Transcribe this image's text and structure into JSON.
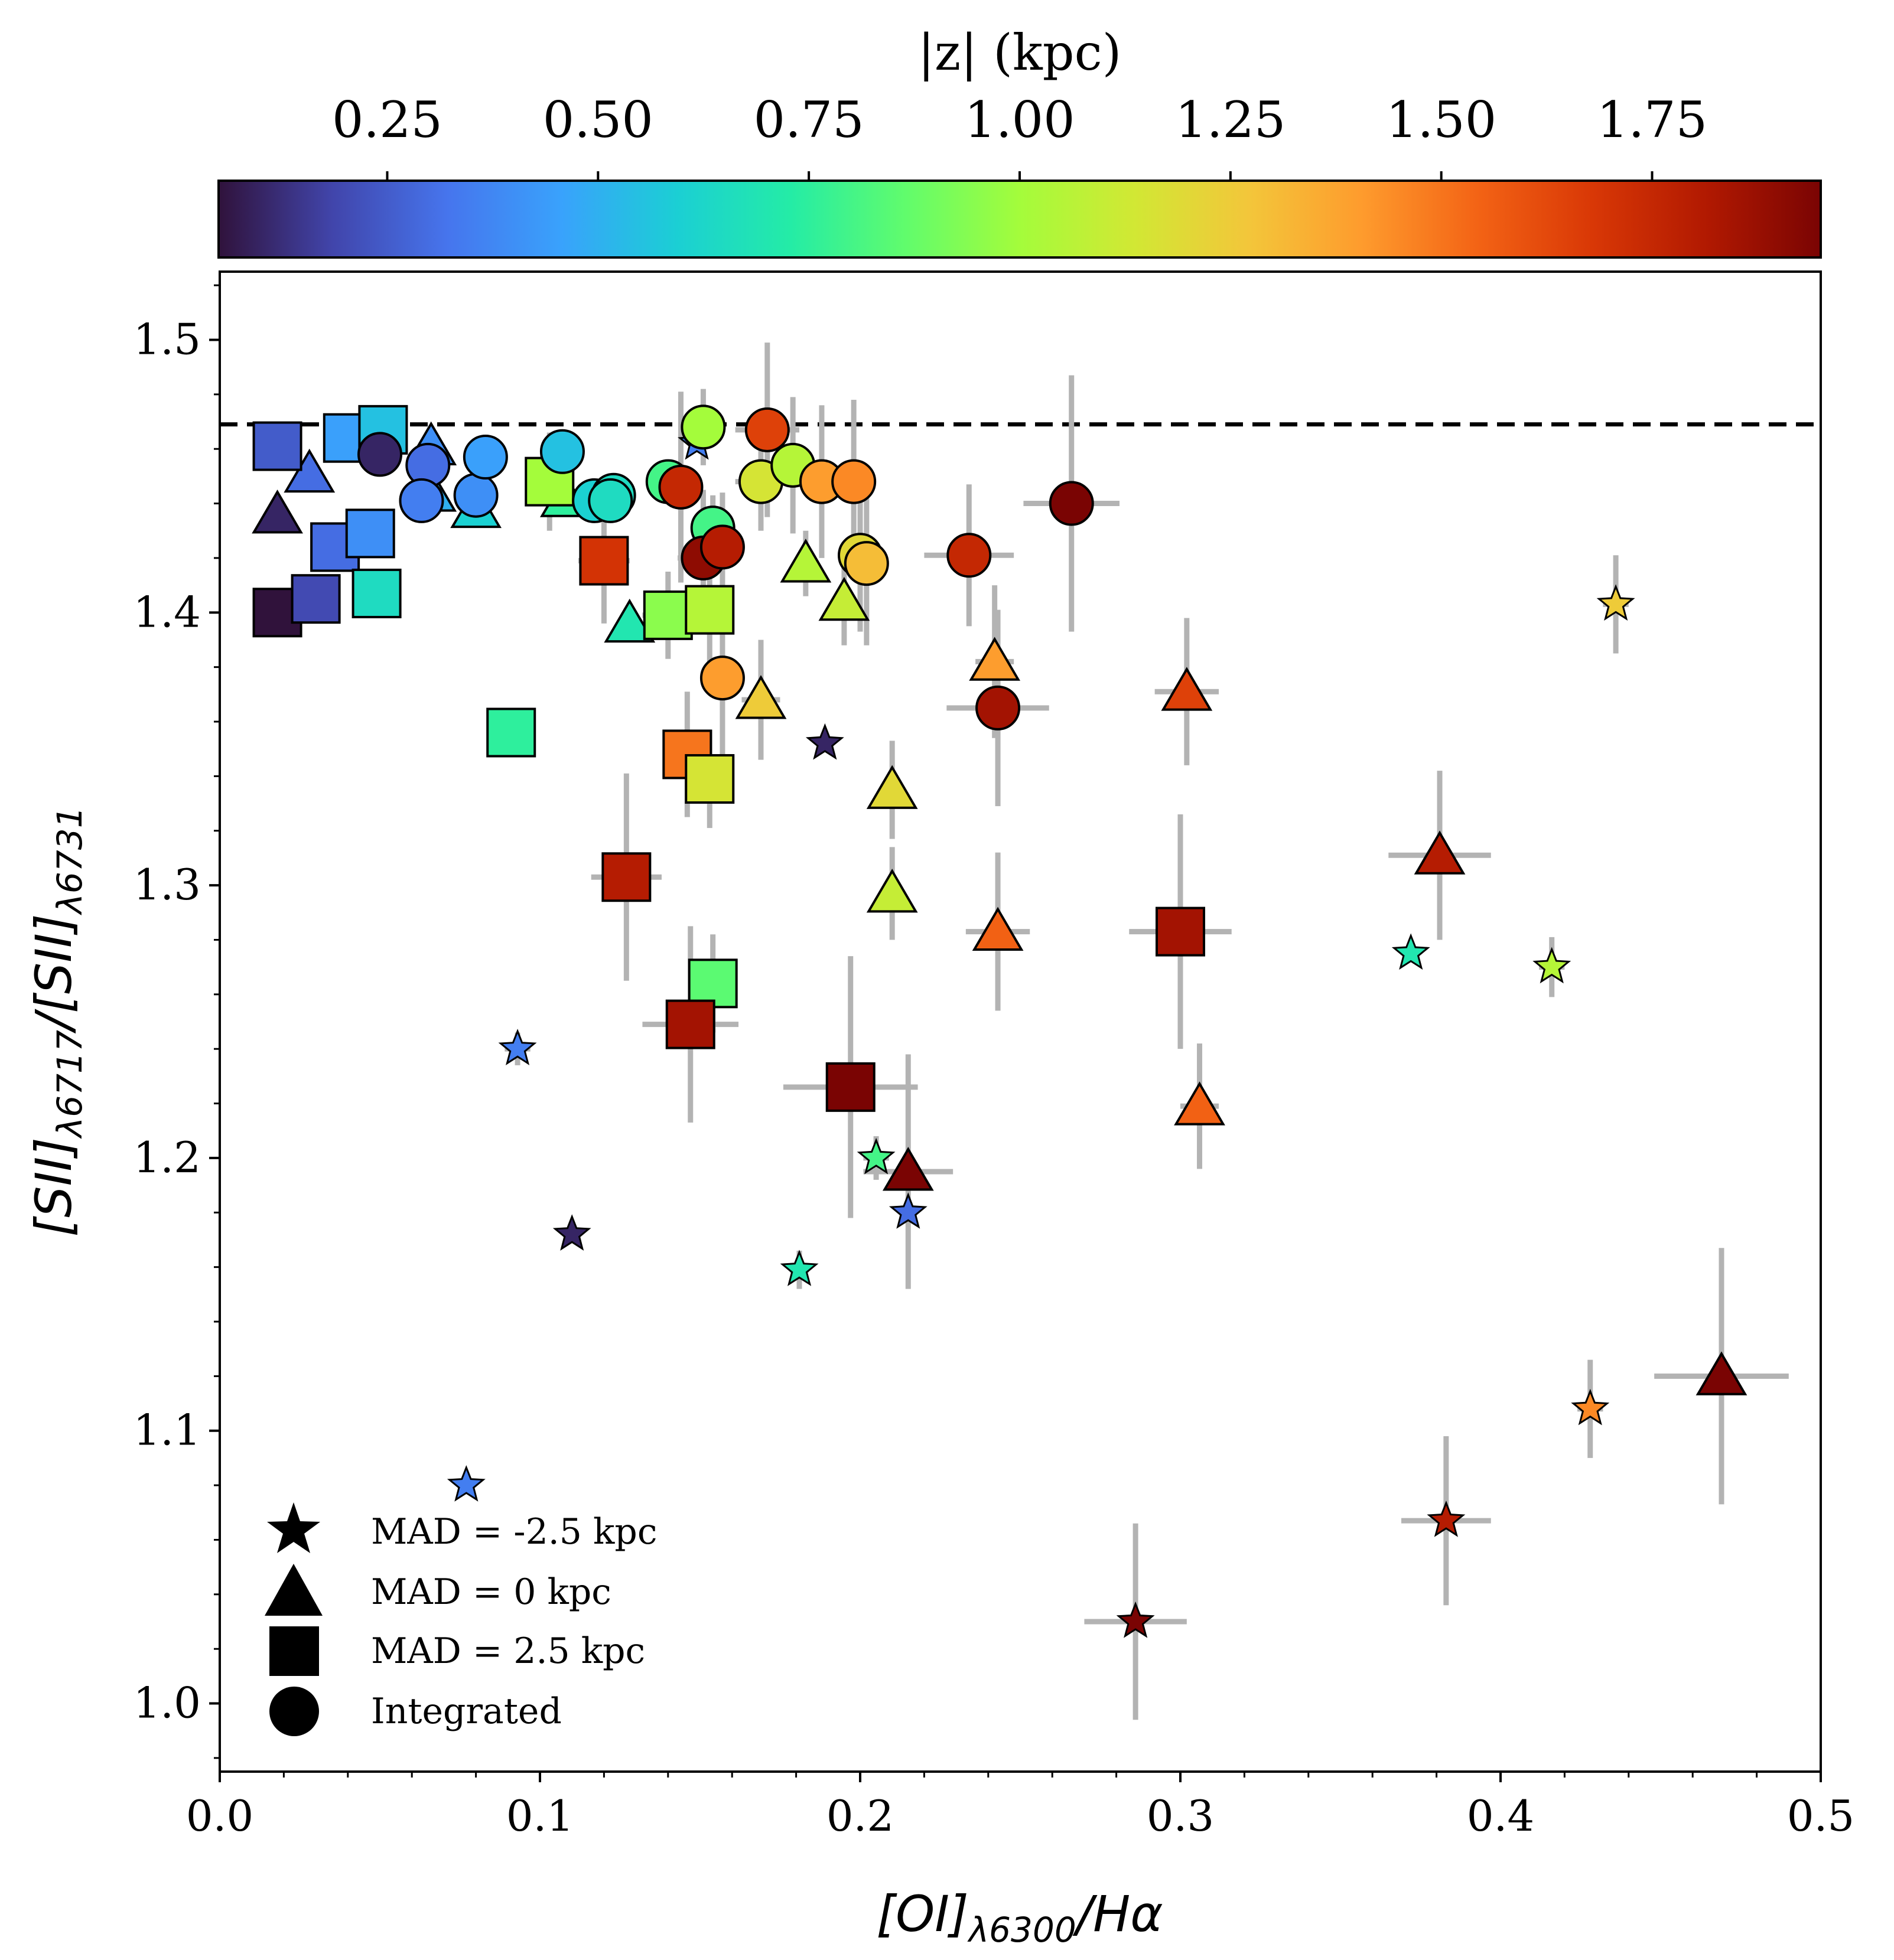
{
  "chart_data": {
    "type": "scatter",
    "title": "",
    "xlabel_parts": {
      "main": "[OI]",
      "sub": "λ6300",
      "tail": "/Hα"
    },
    "ylabel_parts": {
      "a": "[SII]",
      "a_sub": "λ6717",
      "mid": "/[SII]",
      "b_sub": "λ6731"
    },
    "xlim": [
      0.0,
      0.5
    ],
    "ylim": [
      0.975,
      1.525
    ],
    "x_ticks": [
      "0.0",
      "0.1",
      "0.2",
      "0.3",
      "0.4",
      "0.5"
    ],
    "y_ticks": [
      "1.0",
      "1.1",
      "1.2",
      "1.3",
      "1.4",
      "1.5"
    ],
    "reference_line": {
      "y": 1.469,
      "style": "dashed"
    },
    "colorbar": {
      "label": "|z| (kpc)",
      "range": [
        0.05,
        1.95
      ],
      "ticks": [
        "0.25",
        "0.50",
        "0.75",
        "1.00",
        "1.25",
        "1.50",
        "1.75"
      ],
      "colormap": "turbo"
    },
    "legend": {
      "location": "lower-left",
      "entries": [
        {
          "marker": "star",
          "label": "MAD = -2.5 kpc"
        },
        {
          "marker": "triangle",
          "label": "MAD = 0 kpc"
        },
        {
          "marker": "square",
          "label": "MAD = 2.5 kpc"
        },
        {
          "marker": "circle",
          "label": "Integrated"
        }
      ]
    },
    "series": [
      {
        "name": "MAD = -2.5 kpc",
        "marker": "star",
        "points": [
          {
            "x": 0.149,
            "y": 1.462,
            "z": 0.35
          },
          {
            "x": 0.189,
            "y": 1.352,
            "z": 0.1
          },
          {
            "x": 0.093,
            "y": 1.24,
            "z": 0.35,
            "xerr": 0.004,
            "yerr": 0.006
          },
          {
            "x": 0.11,
            "y": 1.172,
            "z": 0.1
          },
          {
            "x": 0.077,
            "y": 1.08,
            "z": 0.35
          },
          {
            "x": 0.205,
            "y": 1.2,
            "z": 0.8,
            "xerr": 0.004,
            "yerr": 0.008
          },
          {
            "x": 0.215,
            "y": 1.18,
            "z": 0.3
          },
          {
            "x": 0.181,
            "y": 1.159,
            "z": 0.7,
            "xerr": 0.003,
            "yerr": 0.007
          },
          {
            "x": 0.286,
            "y": 1.03,
            "z": 1.95,
            "xerr": 0.016,
            "yerr": 0.036
          },
          {
            "x": 0.383,
            "y": 1.067,
            "z": 1.8,
            "xerr": 0.014,
            "yerr": 0.031
          },
          {
            "x": 0.428,
            "y": 1.108,
            "z": 1.45,
            "xerr": 0.004,
            "yerr": 0.018
          },
          {
            "x": 0.372,
            "y": 1.275,
            "z": 0.7
          },
          {
            "x": 0.416,
            "y": 1.27,
            "z": 1.05,
            "xerr": 0.004,
            "yerr": 0.011
          },
          {
            "x": 0.436,
            "y": 1.403,
            "z": 1.25,
            "xerr": 0.004,
            "yerr": 0.018
          }
        ]
      },
      {
        "name": "MAD = 0 kpc",
        "marker": "triangle",
        "points": [
          {
            "x": 0.018,
            "y": 1.436,
            "z": 0.1
          },
          {
            "x": 0.028,
            "y": 1.451,
            "z": 0.3
          },
          {
            "x": 0.066,
            "y": 1.461,
            "z": 0.4
          },
          {
            "x": 0.066,
            "y": 1.444,
            "z": 0.5
          },
          {
            "x": 0.08,
            "y": 1.438,
            "z": 0.6
          },
          {
            "x": 0.108,
            "y": 1.442,
            "z": 0.75
          },
          {
            "x": 0.128,
            "y": 1.396,
            "z": 0.7
          },
          {
            "x": 0.183,
            "y": 1.418,
            "z": 1.05,
            "xerr": 0.004,
            "yerr": 0.012
          },
          {
            "x": 0.195,
            "y": 1.404,
            "z": 1.1,
            "xerr": 0.004,
            "yerr": 0.016
          },
          {
            "x": 0.169,
            "y": 1.368,
            "z": 1.25,
            "xerr": 0.006,
            "yerr": 0.022
          },
          {
            "x": 0.21,
            "y": 1.335,
            "z": 1.2,
            "xerr": 0.004,
            "yerr": 0.018
          },
          {
            "x": 0.21,
            "y": 1.297,
            "z": 1.1,
            "xerr": 0.004,
            "yerr": 0.017
          },
          {
            "x": 0.242,
            "y": 1.382,
            "z": 1.4,
            "xerr": 0.006,
            "yerr": 0.028
          },
          {
            "x": 0.243,
            "y": 1.283,
            "z": 1.55,
            "xerr": 0.01,
            "yerr": 0.029
          },
          {
            "x": 0.302,
            "y": 1.371,
            "z": 1.65,
            "xerr": 0.01,
            "yerr": 0.027
          },
          {
            "x": 0.306,
            "y": 1.219,
            "z": 1.55,
            "xerr": 0.006,
            "yerr": 0.023
          },
          {
            "x": 0.381,
            "y": 1.311,
            "z": 1.8,
            "xerr": 0.016,
            "yerr": 0.031
          },
          {
            "x": 0.215,
            "y": 1.195,
            "z": 1.95,
            "xerr": 0.014,
            "yerr": 0.043
          },
          {
            "x": 0.469,
            "y": 1.12,
            "z": 1.95,
            "xerr": 0.021,
            "yerr": 0.047
          }
        ]
      },
      {
        "name": "MAD = 2.5 kpc",
        "marker": "square",
        "points": [
          {
            "x": 0.018,
            "y": 1.461,
            "z": 0.25
          },
          {
            "x": 0.018,
            "y": 1.4,
            "z": 0.05
          },
          {
            "x": 0.03,
            "y": 1.405,
            "z": 0.2
          },
          {
            "x": 0.036,
            "y": 1.424,
            "z": 0.3
          },
          {
            "x": 0.04,
            "y": 1.464,
            "z": 0.45
          },
          {
            "x": 0.047,
            "y": 1.429,
            "z": 0.4
          },
          {
            "x": 0.051,
            "y": 1.467,
            "z": 0.55
          },
          {
            "x": 0.049,
            "y": 1.407,
            "z": 0.65
          },
          {
            "x": 0.091,
            "y": 1.356,
            "z": 0.75
          },
          {
            "x": 0.103,
            "y": 1.448,
            "z": 1.0,
            "xerr": 0.004,
            "yerr": 0.018
          },
          {
            "x": 0.12,
            "y": 1.419,
            "z": 1.7,
            "xerr": 0.008,
            "yerr": 0.023
          },
          {
            "x": 0.14,
            "y": 1.399,
            "z": 0.95,
            "xerr": 0.008,
            "yerr": 0.016
          },
          {
            "x": 0.153,
            "y": 1.401,
            "z": 1.05,
            "xerr": 0.006,
            "yerr": 0.02
          },
          {
            "x": 0.146,
            "y": 1.348,
            "z": 1.5,
            "xerr": 0.006,
            "yerr": 0.023
          },
          {
            "x": 0.153,
            "y": 1.339,
            "z": 1.15,
            "xerr": 0.006,
            "yerr": 0.018
          },
          {
            "x": 0.127,
            "y": 1.303,
            "z": 1.8,
            "xerr": 0.011,
            "yerr": 0.038
          },
          {
            "x": 0.154,
            "y": 1.264,
            "z": 0.85,
            "xerr": 0.006,
            "yerr": 0.018
          },
          {
            "x": 0.147,
            "y": 1.249,
            "z": 1.85,
            "xerr": 0.015,
            "yerr": 0.036
          },
          {
            "x": 0.197,
            "y": 1.226,
            "z": 1.95,
            "xerr": 0.021,
            "yerr": 0.048
          },
          {
            "x": 0.3,
            "y": 1.283,
            "z": 1.85,
            "xerr": 0.016,
            "yerr": 0.043
          }
        ]
      },
      {
        "name": "Integrated",
        "marker": "circle",
        "points": [
          {
            "x": 0.05,
            "y": 1.458,
            "z": 0.1
          },
          {
            "x": 0.065,
            "y": 1.454,
            "z": 0.3
          },
          {
            "x": 0.063,
            "y": 1.441,
            "z": 0.35
          },
          {
            "x": 0.08,
            "y": 1.443,
            "z": 0.4
          },
          {
            "x": 0.083,
            "y": 1.457,
            "z": 0.45
          },
          {
            "x": 0.107,
            "y": 1.459,
            "z": 0.55
          },
          {
            "x": 0.117,
            "y": 1.441,
            "z": 0.6
          },
          {
            "x": 0.123,
            "y": 1.443,
            "z": 0.65
          },
          {
            "x": 0.122,
            "y": 1.441,
            "z": 0.65
          },
          {
            "x": 0.14,
            "y": 1.448,
            "z": 0.8
          },
          {
            "x": 0.144,
            "y": 1.446,
            "z": 1.75,
            "xerr": 0.006,
            "yerr": 0.035
          },
          {
            "x": 0.151,
            "y": 1.468,
            "z": 1.0,
            "xerr": 0.006,
            "yerr": 0.014
          },
          {
            "x": 0.154,
            "y": 1.431,
            "z": 0.8,
            "xerr": 0.006,
            "yerr": 0.012
          },
          {
            "x": 0.151,
            "y": 1.42,
            "z": 1.9,
            "xerr": 0.008,
            "yerr": 0.025
          },
          {
            "x": 0.157,
            "y": 1.424,
            "z": 1.8,
            "xerr": 0.006,
            "yerr": 0.02
          },
          {
            "x": 0.157,
            "y": 1.376,
            "z": 1.4,
            "xerr": 0.006,
            "yerr": 0.03
          },
          {
            "x": 0.171,
            "y": 1.467,
            "z": 1.65,
            "xerr": 0.01,
            "yerr": 0.032
          },
          {
            "x": 0.169,
            "y": 1.448,
            "z": 1.15,
            "xerr": 0.008,
            "yerr": 0.018
          },
          {
            "x": 0.179,
            "y": 1.454,
            "z": 1.05,
            "xerr": 0.006,
            "yerr": 0.025
          },
          {
            "x": 0.188,
            "y": 1.448,
            "z": 1.4,
            "xerr": 0.007,
            "yerr": 0.028
          },
          {
            "x": 0.198,
            "y": 1.448,
            "z": 1.45,
            "xerr": 0.006,
            "yerr": 0.03
          },
          {
            "x": 0.2,
            "y": 1.421,
            "z": 1.2,
            "xerr": 0.006,
            "yerr": 0.028
          },
          {
            "x": 0.202,
            "y": 1.418,
            "z": 1.3,
            "xerr": 0.006,
            "yerr": 0.03
          },
          {
            "x": 0.234,
            "y": 1.421,
            "z": 1.75,
            "xerr": 0.014,
            "yerr": 0.026
          },
          {
            "x": 0.243,
            "y": 1.365,
            "z": 1.85,
            "xerr": 0.016,
            "yerr": 0.036
          },
          {
            "x": 0.266,
            "y": 1.44,
            "z": 1.95,
            "xerr": 0.015,
            "yerr": 0.047
          }
        ]
      }
    ]
  }
}
